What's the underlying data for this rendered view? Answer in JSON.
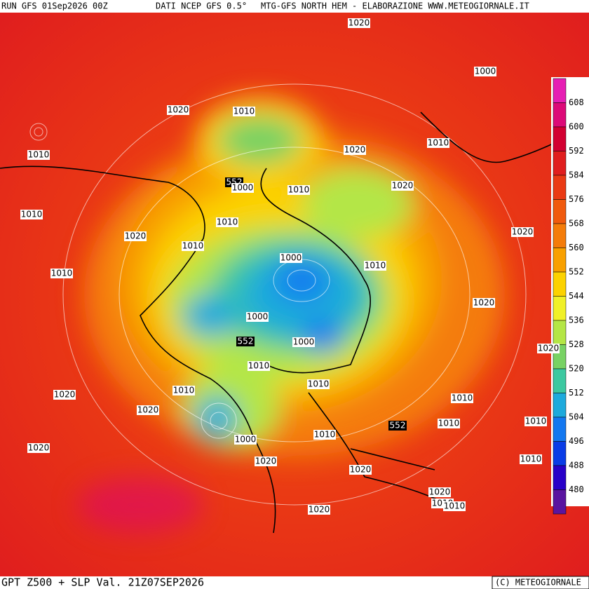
{
  "header": {
    "run": "RUN GFS 01Sep2026 00Z",
    "source": "DATI NCEP GFS 0.5°",
    "site": "MTG-GFS NORTH HEM - ELABORAZIONE WWW.METEOGIORNALE.IT"
  },
  "colorbar": {
    "labels": [
      "608",
      "600",
      "592",
      "584",
      "576",
      "568",
      "560",
      "552",
      "544",
      "536",
      "528",
      "520",
      "512",
      "504",
      "496",
      "488",
      "480"
    ],
    "colors": [
      "#e61eb4",
      "#dc0a78",
      "#d20032",
      "#e01e1e",
      "#ea3a14",
      "#f05a0e",
      "#f47c0a",
      "#f8a000",
      "#fcd200",
      "#f0f028",
      "#b4e646",
      "#78d264",
      "#3cc8a0",
      "#1eaadc",
      "#1478f0",
      "#0a3ce6",
      "#2800c8",
      "#5a14a0"
    ]
  },
  "isobar_labels": [
    "1020",
    "1000",
    "1020",
    "1010",
    "1010",
    "1020",
    "1010",
    "552",
    "1000",
    "1010",
    "1020",
    "1010",
    "1010",
    "1020",
    "1010",
    "1020",
    "1000",
    "1010",
    "1010",
    "1020",
    "1000",
    "552",
    "1000",
    "1010",
    "1010",
    "1010",
    "1020",
    "1020",
    "1010",
    "552",
    "1010",
    "1010",
    "1010",
    "1000",
    "1020",
    "1020",
    "1010",
    "1020",
    "1020",
    "1010",
    "1010",
    "1020",
    "1020"
  ],
  "footer": {
    "title": "GPT Z500 + SLP Val. 21Z07SEP2026",
    "credit": "(C) METEOGIORNALE"
  }
}
